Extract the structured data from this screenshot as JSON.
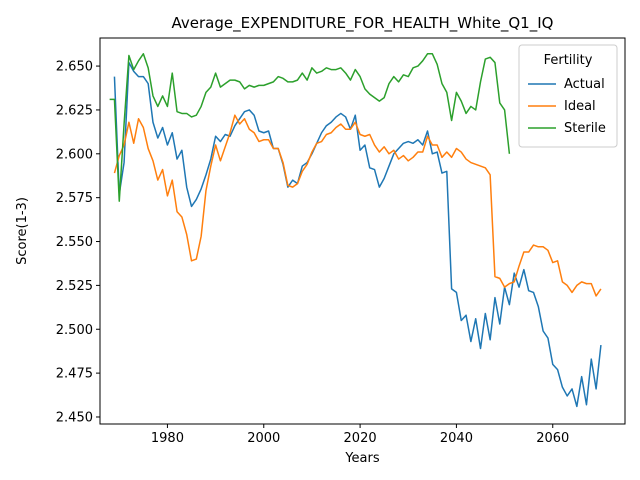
{
  "chart_data": {
    "type": "line",
    "title": "Average_EXPENDITURE_FOR_HEALTH_White_Q1_IQ",
    "xlabel": "Years",
    "ylabel": "Score(1-3)",
    "xlim": [
      1966,
      2075
    ],
    "ylim": [
      2.446,
      2.666
    ],
    "x_ticks": [
      1980,
      2000,
      2020,
      2040,
      2060
    ],
    "y_ticks": [
      2.45,
      2.475,
      2.5,
      2.525,
      2.55,
      2.575,
      2.6,
      2.625,
      2.65
    ],
    "y_tick_labels": [
      "2.450",
      "2.475",
      "2.500",
      "2.525",
      "2.550",
      "2.575",
      "2.600",
      "2.625",
      "2.650"
    ],
    "grid": false,
    "legend": {
      "title": "Fertility",
      "position": "top-right"
    },
    "series": [
      {
        "name": "Actual",
        "color": "#1f77b4",
        "x": [
          1969,
          1970,
          1971,
          1972,
          1973,
          1974,
          1975,
          1976,
          1977,
          1978,
          1979,
          1980,
          1981,
          1982,
          1983,
          1984,
          1985,
          1986,
          1987,
          1988,
          1989,
          1990,
          1991,
          1992,
          1993,
          1994,
          1995,
          1996,
          1997,
          1998,
          1999,
          2000,
          2001,
          2002,
          2003,
          2004,
          2005,
          2006,
          2007,
          2008,
          2009,
          2010,
          2011,
          2012,
          2013,
          2014,
          2015,
          2016,
          2017,
          2018,
          2019,
          2020,
          2021,
          2022,
          2023,
          2024,
          2025,
          2026,
          2027,
          2028,
          2029,
          2030,
          2031,
          2032,
          2033,
          2034,
          2035,
          2036,
          2037,
          2038,
          2039,
          2040,
          2041,
          2042,
          2043,
          2044,
          2045,
          2046,
          2047,
          2048,
          2049,
          2050,
          2051,
          2052,
          2053,
          2054,
          2055,
          2056,
          2057,
          2058,
          2059,
          2060,
          2061,
          2062,
          2063,
          2064,
          2065,
          2066,
          2067,
          2068,
          2069,
          2070
        ],
        "values": [
          2.644,
          2.577,
          2.595,
          2.652,
          2.647,
          2.644,
          2.644,
          2.64,
          2.618,
          2.609,
          2.615,
          2.605,
          2.612,
          2.597,
          2.602,
          2.581,
          2.57,
          2.574,
          2.58,
          2.588,
          2.597,
          2.61,
          2.607,
          2.611,
          2.61,
          2.616,
          2.62,
          2.624,
          2.625,
          2.622,
          2.613,
          2.612,
          2.613,
          2.603,
          2.603,
          2.594,
          2.581,
          2.585,
          2.583,
          2.593,
          2.595,
          2.6,
          2.606,
          2.612,
          2.616,
          2.618,
          2.621,
          2.623,
          2.621,
          2.614,
          2.622,
          2.602,
          2.605,
          2.592,
          2.591,
          2.581,
          2.586,
          2.593,
          2.6,
          2.603,
          2.606,
          2.607,
          2.606,
          2.608,
          2.605,
          2.613,
          2.6,
          2.601,
          2.589,
          2.59,
          2.523,
          2.521,
          2.505,
          2.508,
          2.493,
          2.506,
          2.489,
          2.509,
          2.494,
          2.518,
          2.503,
          2.524,
          2.514,
          2.532,
          2.524,
          2.534,
          2.522,
          2.521,
          2.513,
          2.499,
          2.495,
          2.48,
          2.477,
          2.467,
          2.462,
          2.466,
          2.456,
          2.473,
          2.457,
          2.483,
          2.466,
          2.491
        ]
      },
      {
        "name": "Ideal",
        "color": "#ff7f0e",
        "x": [
          1969,
          1970,
          1971,
          1972,
          1973,
          1974,
          1975,
          1976,
          1977,
          1978,
          1979,
          1980,
          1981,
          1982,
          1983,
          1984,
          1985,
          1986,
          1987,
          1988,
          1989,
          1990,
          1991,
          1992,
          1993,
          1994,
          1995,
          1996,
          1997,
          1998,
          1999,
          2000,
          2001,
          2002,
          2003,
          2004,
          2005,
          2006,
          2007,
          2008,
          2009,
          2010,
          2011,
          2012,
          2013,
          2014,
          2015,
          2016,
          2017,
          2018,
          2019,
          2020,
          2021,
          2022,
          2023,
          2024,
          2025,
          2026,
          2027,
          2028,
          2029,
          2030,
          2031,
          2032,
          2033,
          2034,
          2035,
          2036,
          2037,
          2038,
          2039,
          2040,
          2041,
          2042,
          2043,
          2044,
          2045,
          2046,
          2047,
          2048,
          2049,
          2050,
          2051,
          2052,
          2053,
          2054,
          2055,
          2056,
          2057,
          2058,
          2059,
          2060,
          2061,
          2062,
          2063,
          2064,
          2065,
          2066,
          2067,
          2068,
          2069,
          2070
        ],
        "values": [
          2.589,
          2.599,
          2.605,
          2.618,
          2.606,
          2.62,
          2.615,
          2.603,
          2.596,
          2.585,
          2.591,
          2.576,
          2.585,
          2.567,
          2.564,
          2.554,
          2.539,
          2.54,
          2.553,
          2.579,
          2.593,
          2.605,
          2.596,
          2.604,
          2.612,
          2.622,
          2.617,
          2.62,
          2.614,
          2.612,
          2.607,
          2.608,
          2.608,
          2.603,
          2.603,
          2.595,
          2.582,
          2.581,
          2.583,
          2.59,
          2.594,
          2.601,
          2.606,
          2.607,
          2.611,
          2.612,
          2.615,
          2.617,
          2.614,
          2.614,
          2.618,
          2.611,
          2.61,
          2.611,
          2.605,
          2.601,
          2.604,
          2.6,
          2.602,
          2.597,
          2.599,
          2.596,
          2.598,
          2.601,
          2.601,
          2.61,
          2.605,
          2.605,
          2.598,
          2.601,
          2.598,
          2.603,
          2.601,
          2.597,
          2.595,
          2.594,
          2.593,
          2.592,
          2.588,
          2.53,
          2.529,
          2.524,
          2.526,
          2.527,
          2.536,
          2.544,
          2.544,
          2.548,
          2.547,
          2.547,
          2.545,
          2.538,
          2.539,
          2.527,
          2.525,
          2.521,
          2.525,
          2.527,
          2.526,
          2.526,
          2.519,
          2.523
        ]
      },
      {
        "name": "Sterile",
        "color": "#2ca02c",
        "x": [
          1968,
          1969,
          1970,
          1971,
          1972,
          1973,
          1974,
          1975,
          1976,
          1977,
          1978,
          1979,
          1980,
          1981,
          1982,
          1983,
          1984,
          1985,
          1986,
          1987,
          1988,
          1989,
          1990,
          1991,
          1992,
          1993,
          1994,
          1995,
          1996,
          1997,
          1998,
          1999,
          2000,
          2001,
          2002,
          2003,
          2004,
          2005,
          2006,
          2007,
          2008,
          2009,
          2010,
          2011,
          2012,
          2013,
          2014,
          2015,
          2016,
          2017,
          2018,
          2019,
          2020,
          2021,
          2022,
          2023,
          2024,
          2025,
          2026,
          2027,
          2028,
          2029,
          2030,
          2031,
          2032,
          2033,
          2034,
          2035,
          2036,
          2037,
          2038,
          2039,
          2040,
          2041,
          2042,
          2043,
          2044,
          2045,
          2046,
          2047,
          2048,
          2049,
          2050,
          2051
        ],
        "values": [
          2.631,
          2.631,
          2.573,
          2.617,
          2.656,
          2.648,
          2.653,
          2.657,
          2.649,
          2.633,
          2.627,
          2.633,
          2.627,
          2.646,
          2.624,
          2.623,
          2.623,
          2.621,
          2.622,
          2.627,
          2.635,
          2.638,
          2.646,
          2.638,
          2.64,
          2.642,
          2.642,
          2.641,
          2.637,
          2.639,
          2.638,
          2.639,
          2.639,
          2.64,
          2.641,
          2.644,
          2.643,
          2.641,
          2.641,
          2.642,
          2.646,
          2.642,
          2.649,
          2.646,
          2.647,
          2.649,
          2.648,
          2.648,
          2.649,
          2.646,
          2.642,
          2.648,
          2.644,
          2.637,
          2.634,
          2.632,
          2.63,
          2.632,
          2.64,
          2.644,
          2.641,
          2.645,
          2.644,
          2.649,
          2.65,
          2.653,
          2.657,
          2.657,
          2.651,
          2.64,
          2.635,
          2.619,
          2.635,
          2.63,
          2.623,
          2.627,
          2.625,
          2.641,
          2.654,
          2.655,
          2.652,
          2.629,
          2.625,
          2.6
        ]
      }
    ]
  }
}
